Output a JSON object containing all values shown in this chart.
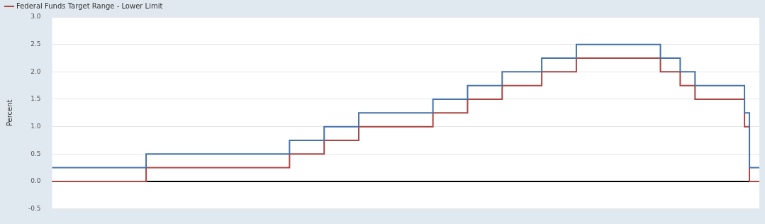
{
  "chart_data": {
    "type": "step",
    "ylabel": "Percent",
    "categories": [
      null,
      null,
      null,
      null,
      null,
      null,
      null,
      null,
      null,
      null,
      null,
      null,
      null,
      null,
      null,
      null,
      null,
      null,
      null,
      null,
      null,
      null,
      null,
      null,
      null,
      null,
      null,
      null,
      null,
      null,
      null,
      null,
      null,
      null,
      null,
      null,
      null,
      null,
      null,
      null,
      null,
      null,
      null,
      null,
      null,
      null,
      null,
      null,
      null,
      null,
      null,
      null,
      null,
      null,
      null,
      null,
      null,
      null,
      null,
      null,
      null,
      null,
      null,
      null,
      null,
      null,
      null,
      null,
      null,
      null,
      null,
      null,
      null,
      null,
      null,
      null,
      null,
      null,
      null,
      null,
      null,
      null,
      null,
      null,
      null,
      null,
      null,
      null,
      null,
      null,
      null,
      null,
      null,
      null,
      null,
      null,
      null,
      null,
      null,
      null,
      null,
      null,
      null,
      null,
      null,
      null,
      null,
      null,
      null,
      null,
      null,
      null,
      null,
      null,
      null,
      null,
      null,
      null,
      null,
      null,
      null,
      null,
      null,
      null,
      null,
      null,
      null,
      null,
      null,
      null,
      null,
      null,
      null,
      null,
      null,
      null,
      null,
      null,
      null,
      null,
      null,
      null,
      null,
      null
    ],
    "series": [
      {
        "color": "#4572a7",
        "values": [
          0.25,
          0.25,
          0.25,
          0.25,
          0.25,
          0.25,
          0.25,
          0.25,
          0.25,
          0.25,
          0.25,
          0.25,
          0.25,
          0.25,
          0.25,
          0.25,
          0.25,
          0.25,
          0.25,
          0.25,
          0.5,
          0.5,
          0.5,
          0.5,
          0.5,
          0.5,
          0.5,
          0.5,
          0.5,
          0.5,
          0.5,
          0.5,
          0.5,
          0.5,
          0.5,
          0.5,
          0.5,
          0.5,
          0.5,
          0.5,
          0.5,
          0.5,
          0.5,
          0.5,
          0.5,
          0.5,
          0.5,
          0.5,
          0.5,
          0.75,
          0.75,
          0.75,
          0.75,
          0.75,
          0.75,
          0.75,
          1.0,
          1.0,
          1.0,
          1.0,
          1.0,
          1.0,
          1.0,
          1.25,
          1.25,
          1.25,
          1.25,
          1.25,
          1.25,
          1.25,
          1.25,
          1.25,
          1.25,
          1.25,
          1.25,
          1.25,
          1.25,
          1.25,
          1.5,
          1.5,
          1.5,
          1.5,
          1.5,
          1.5,
          1.5,
          1.75,
          1.75,
          1.75,
          1.75,
          1.75,
          1.75,
          1.75,
          2.0,
          2.0,
          2.0,
          2.0,
          2.0,
          2.0,
          2.0,
          2.0,
          2.25,
          2.25,
          2.25,
          2.25,
          2.25,
          2.25,
          2.25,
          2.5,
          2.5,
          2.5,
          2.5,
          2.5,
          2.5,
          2.5,
          2.5,
          2.5,
          2.5,
          2.5,
          2.5,
          2.5,
          2.5,
          2.5,
          2.5,
          2.5,
          2.25,
          2.25,
          2.25,
          2.25,
          2.0,
          2.0,
          2.0,
          1.75,
          1.75,
          1.75,
          1.75,
          1.75,
          1.75,
          1.75,
          1.75,
          1.75,
          1.75,
          1.25,
          0.25,
          0.25
        ]
      },
      {
        "name": "Federal Funds Target Range - Lower Limit",
        "color": "#aa4643",
        "values": [
          0,
          0,
          0,
          0,
          0,
          0,
          0,
          0,
          0,
          0,
          0,
          0,
          0,
          0,
          0,
          0,
          0,
          0,
          0,
          0,
          0.25,
          0.25,
          0.25,
          0.25,
          0.25,
          0.25,
          0.25,
          0.25,
          0.25,
          0.25,
          0.25,
          0.25,
          0.25,
          0.25,
          0.25,
          0.25,
          0.25,
          0.25,
          0.25,
          0.25,
          0.25,
          0.25,
          0.25,
          0.25,
          0.25,
          0.25,
          0.25,
          0.25,
          0.25,
          0.5,
          0.5,
          0.5,
          0.5,
          0.5,
          0.5,
          0.5,
          0.75,
          0.75,
          0.75,
          0.75,
          0.75,
          0.75,
          0.75,
          1.0,
          1.0,
          1.0,
          1.0,
          1.0,
          1.0,
          1.0,
          1.0,
          1.0,
          1.0,
          1.0,
          1.0,
          1.0,
          1.0,
          1.0,
          1.25,
          1.25,
          1.25,
          1.25,
          1.25,
          1.25,
          1.25,
          1.5,
          1.5,
          1.5,
          1.5,
          1.5,
          1.5,
          1.5,
          1.75,
          1.75,
          1.75,
          1.75,
          1.75,
          1.75,
          1.75,
          1.75,
          2.0,
          2.0,
          2.0,
          2.0,
          2.0,
          2.0,
          2.0,
          2.25,
          2.25,
          2.25,
          2.25,
          2.25,
          2.25,
          2.25,
          2.25,
          2.25,
          2.25,
          2.25,
          2.25,
          2.25,
          2.25,
          2.25,
          2.25,
          2.25,
          2.0,
          2.0,
          2.0,
          2.0,
          1.75,
          1.75,
          1.75,
          1.5,
          1.5,
          1.5,
          1.5,
          1.5,
          1.5,
          1.5,
          1.5,
          1.5,
          1.5,
          1.0,
          0,
          0
        ]
      }
    ],
    "ylim": [
      -0.5,
      3.0
    ],
    "yticks": [
      {
        "value": -0.5,
        "label": "-0.5"
      },
      {
        "value": 0,
        "label": "0.0"
      },
      {
        "value": 0.5,
        "label": "0.5"
      },
      {
        "value": 1,
        "label": "1.0"
      },
      {
        "value": 1.5,
        "label": "1.5"
      },
      {
        "value": 2,
        "label": "2.0"
      },
      {
        "value": 2.5,
        "label": "2.5"
      },
      {
        "value": 3,
        "label": "3.0"
      }
    ],
    "ref_lines": [
      {
        "axis": "y",
        "value": 0,
        "color": "#000000"
      }
    ],
    "grid": "y",
    "legend": "top left",
    "tick_labels": "y"
  }
}
